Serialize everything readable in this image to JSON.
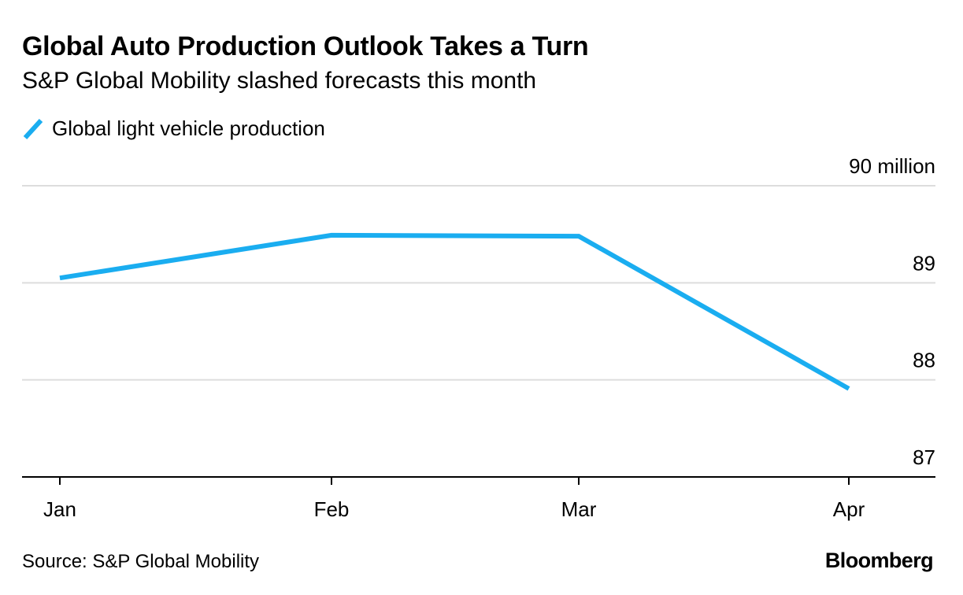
{
  "title": "Global Auto Production Outlook Takes a Turn",
  "subtitle": "S&P Global Mobility slashed forecasts this month",
  "source": "Source: S&P Global Mobility",
  "brand": "Bloomberg",
  "colors": {
    "series": "#1aadf0",
    "grid": "#dddddd",
    "axis": "#000000"
  },
  "chart_data": {
    "type": "line",
    "title": "Global Auto Production Outlook Takes a Turn",
    "subtitle": "S&P Global Mobility slashed forecasts this month",
    "categories": [
      "Jan",
      "Feb",
      "Mar",
      "Apr"
    ],
    "series": [
      {
        "name": "Global light vehicle production",
        "values": [
          89.05,
          89.49,
          89.48,
          87.91
        ]
      }
    ],
    "yticks": [
      {
        "value": 87,
        "label": "87"
      },
      {
        "value": 88,
        "label": "88"
      },
      {
        "value": 89,
        "label": "89"
      },
      {
        "value": 90,
        "label": "90 million"
      }
    ],
    "ylim": [
      87,
      90
    ],
    "axis_position": "right",
    "grid": true,
    "legend": "top-left"
  }
}
